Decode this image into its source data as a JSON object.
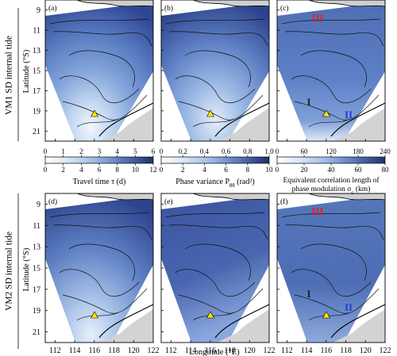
{
  "row_labels": [
    "VM1 SD internal tide",
    "VM2 SD internal tide"
  ],
  "ylabel": "Latitude (°S)",
  "xlabel": "Longitude (°E)",
  "y_ticks": [
    "9",
    "11",
    "13",
    "15",
    "17",
    "19",
    "21"
  ],
  "x_ticks": [
    "112",
    "114",
    "116",
    "118",
    "120",
    "122"
  ],
  "panel_labels": [
    "(a)",
    "(b)",
    "(c)",
    "(d)",
    "(e)",
    "(f)"
  ],
  "region_labels": {
    "I": "I",
    "II": "II",
    "III": "III"
  },
  "colors": {
    "dark": "#1f2f6b",
    "mid": "#5b7cc4",
    "light": "#dce8f7",
    "land": "#d3d3d3",
    "marker": "#ffe600",
    "label_red": "#e02020",
    "label_blue": "#1a3fd6"
  },
  "colorbars": [
    {
      "top_ticks": [
        "0",
        "1",
        "2",
        "3",
        "4",
        "5",
        "6"
      ],
      "bottom_ticks": [
        "0",
        "2",
        "4",
        "6",
        "8",
        "10",
        "12"
      ],
      "label": "Travel time τ (d)"
    },
    {
      "top_ticks": [
        "0",
        "0.2",
        "0.4",
        "0.6",
        "0.8",
        "1.0"
      ],
      "bottom_ticks": [
        "0",
        "2",
        "4",
        "6",
        "8",
        "10"
      ],
      "label": "Phase variance P",
      "label_sub": "θθ",
      "label_unit": " (rad²)"
    },
    {
      "top_ticks": [
        "0",
        "60",
        "120",
        "180",
        "240"
      ],
      "bottom_ticks": [
        "0",
        "20",
        "40",
        "60",
        "80"
      ],
      "label_line1": "Equivalent correlation length of",
      "label_line2": "phase modulation σ",
      "label_sub": "c",
      "label_unit": " (km)"
    }
  ],
  "chart_data": [
    {
      "type": "heatmap",
      "panel": "(a)",
      "mode": "VM1 SD internal tide",
      "quantity": "Travel time τ (d)",
      "colorbar_range_top": [
        0,
        6
      ],
      "colorbar_range_bottom": [
        0,
        12
      ],
      "xlim": [
        111,
        122
      ],
      "ylim": [
        22,
        8
      ]
    },
    {
      "type": "heatmap",
      "panel": "(b)",
      "mode": "VM1 SD internal tide",
      "quantity": "Phase variance Pθθ (rad²)",
      "colorbar_range_top": [
        0,
        1.0
      ],
      "colorbar_range_bottom": [
        0,
        10
      ],
      "xlim": [
        111,
        122
      ],
      "ylim": [
        22,
        8
      ]
    },
    {
      "type": "heatmap",
      "panel": "(c)",
      "mode": "VM1 SD internal tide",
      "quantity": "Equivalent correlation length of phase modulation σc (km)",
      "colorbar_range_top": [
        0,
        240
      ],
      "colorbar_range_bottom": [
        0,
        80
      ],
      "xlim": [
        111,
        122
      ],
      "ylim": [
        22,
        8
      ],
      "annotations": [
        "I",
        "II",
        "III"
      ]
    },
    {
      "type": "heatmap",
      "panel": "(d)",
      "mode": "VM2 SD internal tide",
      "quantity": "Travel time τ (d)",
      "xlim": [
        111,
        122
      ],
      "ylim": [
        22,
        8
      ]
    },
    {
      "type": "heatmap",
      "panel": "(e)",
      "mode": "VM2 SD internal tide",
      "quantity": "Phase variance Pθθ (rad²)",
      "xlim": [
        111,
        122
      ],
      "ylim": [
        22,
        8
      ]
    },
    {
      "type": "heatmap",
      "panel": "(f)",
      "mode": "VM2 SD internal tide",
      "quantity": "Equivalent correlation length of phase modulation σc (km)",
      "xlim": [
        111,
        122
      ],
      "ylim": [
        22,
        8
      ],
      "annotations": [
        "I",
        "II",
        "III"
      ]
    }
  ]
}
